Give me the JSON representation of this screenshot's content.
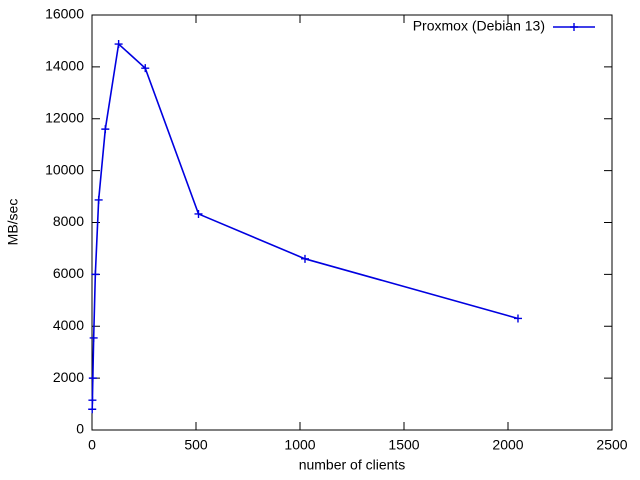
{
  "chart_data": {
    "type": "line",
    "x_label": "number of clients",
    "y_label": "MB/sec",
    "series": [
      {
        "name": "Proxmox (Debian 13)",
        "color": "#0000e0",
        "x": [
          1,
          2,
          4,
          8,
          16,
          32,
          64,
          128,
          256,
          512,
          1024,
          2048
        ],
        "values": [
          800,
          1150,
          2000,
          3550,
          6000,
          8870,
          11600,
          14880,
          13950,
          8330,
          6600,
          4300
        ]
      }
    ],
    "xlim": [
      0,
      2500
    ],
    "xticks": [
      0,
      500,
      1000,
      1500,
      2000,
      2500
    ],
    "ylim": [
      0,
      16000
    ],
    "yticks": [
      0,
      2000,
      4000,
      6000,
      8000,
      10000,
      12000,
      14000,
      16000
    ],
    "legend": "top-right",
    "grid": false
  }
}
